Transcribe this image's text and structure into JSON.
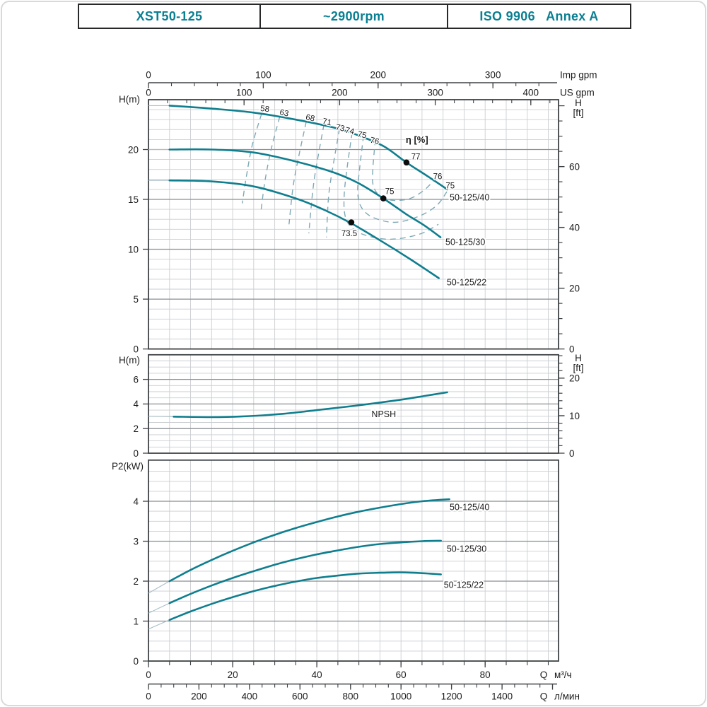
{
  "header": {
    "model": "XST50-125",
    "speed": "~2900rpm",
    "standard": "ISO 9906   Annex A"
  },
  "colors": {
    "header_text": "#0a7f92",
    "curve": "#0f7e8e",
    "curve_thin": "#a9bfc9",
    "efficiency_dash": "#7fa9b6",
    "grid_minor": "#cbced1",
    "grid_major": "#8b8f92",
    "border": "#3f4346",
    "text": "#1c1c1c",
    "dot": "#0c0c0c"
  },
  "chart_data": {
    "type": "line",
    "title": "XST50-125 pump performance curves",
    "flow_axes": {
      "m3h": {
        "unit_q": "Q",
        "unit": "м³/ч",
        "ticks": [
          0,
          20,
          40,
          60,
          80
        ],
        "minor_step": 5,
        "max": 95
      },
      "lmin": {
        "unit_q": "Q",
        "unit": "л/мин",
        "ticks": [
          0,
          200,
          400,
          600,
          800,
          1000,
          1200,
          1400
        ],
        "minor_step": 50,
        "max": 1600
      },
      "imp_gpm": {
        "unit": "Imp gpm",
        "ticks": [
          0,
          100,
          200,
          300
        ],
        "minor_step": 20,
        "max": 355
      },
      "us_gpm": {
        "unit": "US gpm",
        "ticks": [
          0,
          100,
          200,
          300,
          400
        ],
        "minor_step": 20,
        "max": 428
      }
    },
    "head_chart": {
      "ylabel": "H(m)",
      "right_axis_label": [
        "H",
        "[ft]"
      ],
      "ylim": [
        0,
        25
      ],
      "yticks": [
        0,
        5,
        10,
        15,
        20
      ],
      "y_minor_step": 1,
      "right_ft_ticks": [
        0,
        20,
        40,
        60
      ],
      "right_ft_minor_step": 5,
      "right_ft_max": 80,
      "series": [
        {
          "name": "50-125/40",
          "label": "50-125/40",
          "label_at": [
            76.3,
            15.2
          ],
          "points": [
            [
              0,
              24.4
            ],
            [
              5,
              24.4
            ],
            [
              15,
              24.1
            ],
            [
              25,
              23.7
            ],
            [
              35,
              23.0
            ],
            [
              44,
              22.2
            ],
            [
              50,
              21.4
            ],
            [
              56,
              20.3
            ],
            [
              61.3,
              18.7
            ],
            [
              66.4,
              17.3
            ],
            [
              71,
              16.0
            ]
          ]
        },
        {
          "name": "50-125/30",
          "label": "50-125/30",
          "label_at": [
            75.3,
            10.75
          ],
          "points": [
            [
              0,
              20.0
            ],
            [
              5,
              20.0
            ],
            [
              15,
              20.0
            ],
            [
              25,
              19.7
            ],
            [
              35,
              18.8
            ],
            [
              44,
              17.7
            ],
            [
              50,
              16.6
            ],
            [
              55.8,
              15.1
            ],
            [
              61.3,
              13.5
            ],
            [
              65.5,
              12.4
            ],
            [
              69.4,
              11.2
            ]
          ]
        },
        {
          "name": "50-125/22",
          "label": "50-125/22",
          "label_at": [
            75.6,
            6.7
          ],
          "points": [
            [
              0,
              16.9
            ],
            [
              5,
              16.9
            ],
            [
              15,
              16.8
            ],
            [
              25,
              16.3
            ],
            [
              35,
              15.1
            ],
            [
              42,
              13.9
            ],
            [
              48.2,
              12.6
            ],
            [
              55.4,
              10.8
            ],
            [
              62.2,
              9.0
            ],
            [
              69,
              7.1
            ]
          ]
        }
      ],
      "efficiency": {
        "label": "η [%]",
        "label_at": [
          63.8,
          21.0
        ],
        "lines": [
          {
            "value": "58",
            "text_at": [
              27.6,
              24.1
            ],
            "points": [
              [
                26.9,
                23.6
              ],
              [
                24.7,
                20.5
              ],
              [
                23.3,
                17.4
              ],
              [
                22.3,
                14.6
              ]
            ]
          },
          {
            "value": "63",
            "text_at": [
              32.1,
              23.7
            ],
            "points": [
              [
                31.2,
                23.3
              ],
              [
                29.2,
                20.1
              ],
              [
                27.7,
                16.9
              ],
              [
                26.7,
                13.7
              ]
            ]
          },
          {
            "value": "68",
            "text_at": [
              38.3,
              23.2
            ],
            "points": [
              [
                37.5,
                22.8
              ],
              [
                35.8,
                19.5
              ],
              [
                34.4,
                16.4
              ],
              [
                33.4,
                12.5
              ]
            ]
          },
          {
            "value": "71",
            "text_at": [
              42.3,
              22.8
            ],
            "points": [
              [
                41.7,
                22.5
              ],
              [
                40.3,
                19.3
              ],
              [
                39.1,
                16.1
              ],
              [
                38.1,
                11.6
              ]
            ]
          },
          {
            "value": "73",
            "text_at": [
              45.4,
              22.2
            ],
            "points": [
              [
                45.4,
                22.1
              ],
              [
                44.0,
                18.7
              ],
              [
                42.8,
                15.3
              ],
              [
                42.3,
                11.2
              ]
            ]
          },
          {
            "value": "74",
            "text_at": [
              47.7,
              21.9
            ],
            "points": [
              [
                48.4,
                21.7
              ],
              [
                47.2,
                18.2
              ],
              [
                46.5,
                15.4
              ],
              [
                46.7,
                13.4
              ],
              [
                48.2,
                12.2
              ],
              [
                51.6,
                11.4
              ],
              [
                57.5,
                11.0
              ],
              [
                64.3,
                11.5
              ],
              [
                68.9,
                12.5
              ]
            ]
          },
          {
            "value": "75",
            "text_at": [
              50.6,
              21.5
            ],
            "points": [
              [
                51.1,
                21.4
              ],
              [
                50.1,
                17.8
              ],
              [
                49.7,
                15.7
              ],
              [
                50.6,
                14.2
              ],
              [
                53.3,
                13.2
              ],
              [
                58.5,
                12.7
              ],
              [
                64.2,
                13.3
              ],
              [
                68.5,
                14.4
              ],
              [
                71.1,
                15.9
              ]
            ]
          },
          {
            "value": "76",
            "text_at": [
              53.6,
              20.9
            ],
            "points": [
              [
                53.9,
                21.0
              ],
              [
                53.3,
                18.0
              ],
              [
                53.4,
                16.4
              ],
              [
                54.9,
                15.4
              ],
              [
                58.1,
                14.9
              ],
              [
                62.2,
                15.1
              ],
              [
                65.7,
                16.0
              ],
              [
                68.2,
                17.1
              ]
            ]
          }
        ],
        "right_labels": [
          {
            "value": "76",
            "at": [
              68.7,
              17.3
            ]
          },
          {
            "value": "75",
            "at": [
              71.7,
              16.4
            ]
          }
        ],
        "bep_points": [
          {
            "value": "77",
            "at": [
              61.3,
              18.7
            ],
            "text_at": [
              63.5,
              19.3
            ]
          },
          {
            "value": "75",
            "at": [
              55.8,
              15.1
            ],
            "text_at": [
              57.3,
              15.8
            ]
          },
          {
            "value": "73.5",
            "at": [
              48.2,
              12.7
            ],
            "text_at": [
              47.7,
              11.6
            ]
          }
        ]
      }
    },
    "npsh_chart": {
      "ylabel": "H(m)",
      "right_axis_label": [
        "H",
        "[ft]"
      ],
      "ylim": [
        0,
        8
      ],
      "yticks": [
        0,
        2,
        4,
        6
      ],
      "y_minor_step": 0.5,
      "right_ft_ticks": [
        0,
        10,
        20
      ],
      "right_ft_minor_step": 2,
      "right_ft_max": 26,
      "series": [
        {
          "name": "NPSH",
          "label": "NPSH",
          "label_at": [
            55.9,
            3.2
          ],
          "points": [
            [
              0,
              3.0
            ],
            [
              6,
              2.97
            ],
            [
              15,
              2.93
            ],
            [
              22,
              2.98
            ],
            [
              32,
              3.2
            ],
            [
              40,
              3.5
            ],
            [
              49,
              3.85
            ],
            [
              59,
              4.3
            ],
            [
              65.5,
              4.65
            ],
            [
              71,
              4.95
            ]
          ]
        }
      ]
    },
    "power_chart": {
      "ylabel": "P2(kW)",
      "ylim": [
        0,
        5
      ],
      "yticks": [
        0,
        1,
        2,
        3,
        4
      ],
      "y_minor_step": 0.25,
      "series": [
        {
          "name": "50-125/40",
          "label": "50-125/40",
          "label_at": [
            76.3,
            3.86
          ],
          "points": [
            [
              0,
              1.7
            ],
            [
              5,
              2.0
            ],
            [
              10,
              2.28
            ],
            [
              15,
              2.53
            ],
            [
              20,
              2.76
            ],
            [
              25,
              2.97
            ],
            [
              30,
              3.16
            ],
            [
              35,
              3.33
            ],
            [
              40,
              3.48
            ],
            [
              45,
              3.62
            ],
            [
              50,
              3.74
            ],
            [
              55,
              3.84
            ],
            [
              60,
              3.93
            ],
            [
              65,
              4.0
            ],
            [
              71.5,
              4.05
            ]
          ]
        },
        {
          "name": "50-125/30",
          "label": "50-125/30",
          "label_at": [
            75.6,
            2.81
          ],
          "points": [
            [
              0,
              1.2
            ],
            [
              5,
              1.45
            ],
            [
              10,
              1.68
            ],
            [
              15,
              1.89
            ],
            [
              20,
              2.08
            ],
            [
              25,
              2.25
            ],
            [
              30,
              2.41
            ],
            [
              35,
              2.55
            ],
            [
              40,
              2.67
            ],
            [
              45,
              2.77
            ],
            [
              50,
              2.86
            ],
            [
              55,
              2.93
            ],
            [
              60,
              2.97
            ],
            [
              65,
              3.0
            ],
            [
              69.5,
              3.01
            ]
          ]
        },
        {
          "name": "50-125/22",
          "label": "50-125/22",
          "label_at": [
            74.9,
            1.91
          ],
          "points": [
            [
              0,
              0.8
            ],
            [
              5,
              1.03
            ],
            [
              10,
              1.24
            ],
            [
              15,
              1.43
            ],
            [
              20,
              1.6
            ],
            [
              25,
              1.75
            ],
            [
              30,
              1.88
            ],
            [
              35,
              1.99
            ],
            [
              40,
              2.08
            ],
            [
              45,
              2.14
            ],
            [
              50,
              2.19
            ],
            [
              55,
              2.21
            ],
            [
              60,
              2.22
            ],
            [
              65,
              2.2
            ],
            [
              69.5,
              2.17
            ]
          ]
        }
      ]
    }
  }
}
